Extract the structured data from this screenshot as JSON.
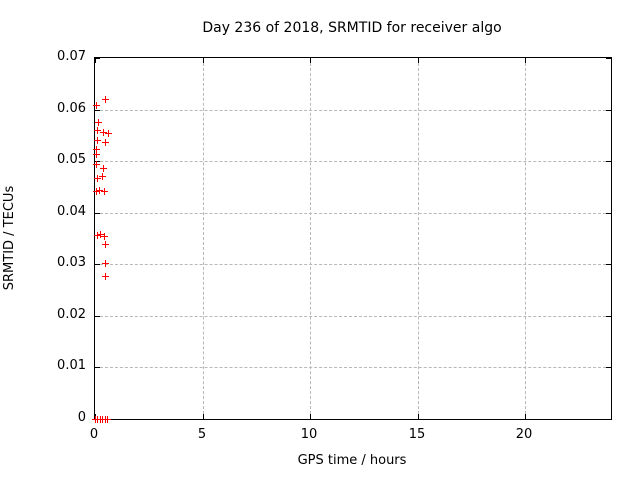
{
  "title": "Day 236 of 2018, SRMTID for receiver algo",
  "chart_data": {
    "type": "scatter",
    "title": "Day 236 of 2018, SRMTID for receiver algo",
    "xlabel": "GPS time / hours",
    "ylabel": "SRMTID / TECUs",
    "xlim": [
      0,
      24
    ],
    "ylim": [
      0,
      0.07
    ],
    "x_ticks": [
      0,
      5,
      10,
      15,
      20
    ],
    "x_tick_labels": [
      "0",
      "5",
      "10",
      "15",
      "20"
    ],
    "y_ticks": [
      0,
      0.01,
      0.02,
      0.03,
      0.04,
      0.05,
      0.06,
      0.07
    ],
    "y_tick_labels": [
      "0",
      "0.01",
      "0.02",
      "0.03",
      "0.04",
      "0.05",
      "0.06",
      "0.07"
    ],
    "grid": true,
    "grid_color": "#b8b8b8",
    "legend_position": "none",
    "marker": "plus",
    "marker_color": "#ff0000",
    "background_color": "#ffffff",
    "border_color": "#000000",
    "series": [
      {
        "name": "SRMTID",
        "points": [
          [
            0.47,
            0.062
          ],
          [
            0.05,
            0.0608
          ],
          [
            0.14,
            0.0576
          ],
          [
            0.09,
            0.0561
          ],
          [
            0.37,
            0.0557
          ],
          [
            0.6,
            0.0555
          ],
          [
            0.09,
            0.0541
          ],
          [
            0.47,
            0.0537
          ],
          [
            0.05,
            0.0524
          ],
          [
            0.05,
            0.0514
          ],
          [
            0.05,
            0.0494
          ],
          [
            0.37,
            0.0486
          ],
          [
            0.33,
            0.0471
          ],
          [
            0.09,
            0.0467
          ],
          [
            0.19,
            0.0445
          ],
          [
            0.05,
            0.0443
          ],
          [
            0.42,
            0.0443
          ],
          [
            0.23,
            0.0359
          ],
          [
            0.09,
            0.0357
          ],
          [
            0.42,
            0.0355
          ],
          [
            0.47,
            0.0339
          ],
          [
            0.47,
            0.0302
          ],
          [
            0.47,
            0.0277
          ],
          [
            0.02,
            0.0
          ],
          [
            0.1,
            0.0
          ],
          [
            0.23,
            0.0
          ],
          [
            0.33,
            0.0
          ],
          [
            0.47,
            0.0
          ],
          [
            0.56,
            0.0
          ]
        ]
      }
    ]
  }
}
